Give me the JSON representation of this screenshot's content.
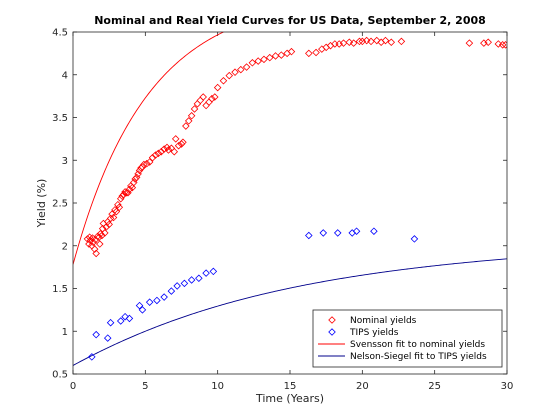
{
  "chart_data": {
    "type": "scatter",
    "title": "Nominal and Real Yield Curves for US Data, September 2, 2008",
    "xlabel": "Time (Years)",
    "ylabel": "Yield (%)",
    "xlim": [
      0,
      30
    ],
    "ylim": [
      0.5,
      4.5
    ],
    "xticks": [
      0,
      5,
      10,
      15,
      20,
      25,
      30
    ],
    "yticks": [
      0.5,
      1,
      1.5,
      2,
      2.5,
      3,
      3.5,
      4,
      4.5
    ],
    "grid": false,
    "legend_position": "bottom-right",
    "colors": {
      "nominal": "#ff0000",
      "tips": "#0000ff",
      "axes": "#262626"
    },
    "series": [
      {
        "name": "Nominal yields",
        "kind": "scatter",
        "marker": "diamond",
        "color": "#ff0000",
        "points": [
          [
            1.0,
            2.08
          ],
          [
            1.1,
            2.02
          ],
          [
            1.15,
            2.1
          ],
          [
            1.2,
            2.06
          ],
          [
            1.3,
            2.0
          ],
          [
            1.35,
            2.09
          ],
          [
            1.4,
            2.04
          ],
          [
            1.5,
            1.96
          ],
          [
            1.55,
            2.07
          ],
          [
            1.6,
            1.91
          ],
          [
            1.7,
            2.11
          ],
          [
            1.8,
            2.1
          ],
          [
            1.85,
            2.02
          ],
          [
            1.9,
            2.14
          ],
          [
            2.0,
            2.12
          ],
          [
            2.05,
            2.2
          ],
          [
            2.1,
            2.26
          ],
          [
            2.2,
            2.15
          ],
          [
            2.3,
            2.22
          ],
          [
            2.4,
            2.28
          ],
          [
            2.5,
            2.25
          ],
          [
            2.6,
            2.32
          ],
          [
            2.7,
            2.37
          ],
          [
            2.8,
            2.33
          ],
          [
            2.9,
            2.42
          ],
          [
            3.0,
            2.4
          ],
          [
            3.1,
            2.48
          ],
          [
            3.2,
            2.45
          ],
          [
            3.3,
            2.55
          ],
          [
            3.4,
            2.58
          ],
          [
            3.5,
            2.6
          ],
          [
            3.6,
            2.63
          ],
          [
            3.7,
            2.62
          ],
          [
            3.8,
            2.62
          ],
          [
            3.9,
            2.66
          ],
          [
            4.0,
            2.7
          ],
          [
            4.1,
            2.68
          ],
          [
            4.2,
            2.74
          ],
          [
            4.3,
            2.78
          ],
          [
            4.4,
            2.8
          ],
          [
            4.5,
            2.84
          ],
          [
            4.6,
            2.88
          ],
          [
            4.7,
            2.91
          ],
          [
            4.8,
            2.92
          ],
          [
            4.9,
            2.95
          ],
          [
            5.1,
            2.96
          ],
          [
            5.3,
            2.98
          ],
          [
            5.5,
            3.03
          ],
          [
            5.7,
            3.06
          ],
          [
            5.9,
            3.08
          ],
          [
            6.1,
            3.1
          ],
          [
            6.3,
            3.13
          ],
          [
            6.5,
            3.15
          ],
          [
            6.6,
            3.12
          ],
          [
            6.8,
            3.14
          ],
          [
            7.0,
            3.1
          ],
          [
            7.1,
            3.25
          ],
          [
            7.3,
            3.17
          ],
          [
            7.5,
            3.19
          ],
          [
            7.6,
            3.21
          ],
          [
            7.8,
            3.4
          ],
          [
            8.0,
            3.46
          ],
          [
            8.2,
            3.52
          ],
          [
            8.4,
            3.6
          ],
          [
            8.6,
            3.66
          ],
          [
            8.8,
            3.7
          ],
          [
            9.0,
            3.74
          ],
          [
            9.2,
            3.64
          ],
          [
            9.4,
            3.68
          ],
          [
            9.6,
            3.72
          ],
          [
            9.8,
            3.74
          ],
          [
            10.0,
            3.85
          ],
          [
            10.4,
            3.93
          ],
          [
            10.8,
            3.99
          ],
          [
            11.2,
            4.03
          ],
          [
            11.6,
            4.06
          ],
          [
            12.0,
            4.09
          ],
          [
            12.4,
            4.14
          ],
          [
            12.8,
            4.16
          ],
          [
            13.2,
            4.18
          ],
          [
            13.6,
            4.2
          ],
          [
            14.0,
            4.22
          ],
          [
            14.4,
            4.23
          ],
          [
            14.8,
            4.25
          ],
          [
            15.1,
            4.27
          ],
          [
            16.3,
            4.25
          ],
          [
            16.8,
            4.26
          ],
          [
            17.2,
            4.3
          ],
          [
            17.5,
            4.32
          ],
          [
            17.8,
            4.34
          ],
          [
            18.1,
            4.36
          ],
          [
            18.4,
            4.36
          ],
          [
            18.7,
            4.37
          ],
          [
            19.1,
            4.38
          ],
          [
            19.4,
            4.37
          ],
          [
            19.8,
            4.39
          ],
          [
            20.0,
            4.39
          ],
          [
            20.3,
            4.4
          ],
          [
            20.6,
            4.39
          ],
          [
            21.0,
            4.4
          ],
          [
            21.3,
            4.38
          ],
          [
            21.6,
            4.4
          ],
          [
            22.0,
            4.38
          ],
          [
            22.7,
            4.39
          ],
          [
            27.4,
            4.37
          ],
          [
            28.4,
            4.37
          ],
          [
            28.7,
            4.38
          ],
          [
            29.4,
            4.36
          ],
          [
            29.7,
            4.35
          ],
          [
            29.9,
            4.35
          ]
        ]
      },
      {
        "name": "TIPS yields",
        "kind": "scatter",
        "marker": "diamond",
        "color": "#0000ff",
        "points": [
          [
            1.3,
            0.7
          ],
          [
            1.6,
            0.96
          ],
          [
            2.4,
            0.92
          ],
          [
            2.6,
            1.1
          ],
          [
            3.3,
            1.12
          ],
          [
            3.6,
            1.17
          ],
          [
            3.9,
            1.15
          ],
          [
            4.6,
            1.3
          ],
          [
            4.8,
            1.25
          ],
          [
            5.3,
            1.34
          ],
          [
            5.8,
            1.36
          ],
          [
            6.3,
            1.4
          ],
          [
            6.8,
            1.47
          ],
          [
            7.2,
            1.53
          ],
          [
            7.7,
            1.56
          ],
          [
            8.2,
            1.6
          ],
          [
            8.7,
            1.62
          ],
          [
            9.2,
            1.68
          ],
          [
            9.7,
            1.7
          ],
          [
            16.3,
            2.12
          ],
          [
            17.3,
            2.15
          ],
          [
            18.3,
            2.15
          ],
          [
            19.3,
            2.15
          ],
          [
            19.6,
            2.17
          ],
          [
            20.8,
            2.17
          ],
          [
            23.6,
            2.08
          ]
        ]
      },
      {
        "name": "Svensson fit to nominal yields",
        "kind": "line",
        "color": "#ff0000",
        "model": "svensson",
        "params": {
          "beta0": 4.4,
          "beta1": -2.62,
          "beta2": 0,
          "beta3": 2.9,
          "tau1": 3,
          "tau2": 8
        }
      },
      {
        "name": "Nelson-Siegel fit to TIPS yields",
        "kind": "line",
        "color": "#00008b",
        "model": "nelson-siegel",
        "params": {
          "beta0": 2.3,
          "beta1": -1.7,
          "beta2": -0.6,
          "tau": 6
        }
      }
    ]
  }
}
